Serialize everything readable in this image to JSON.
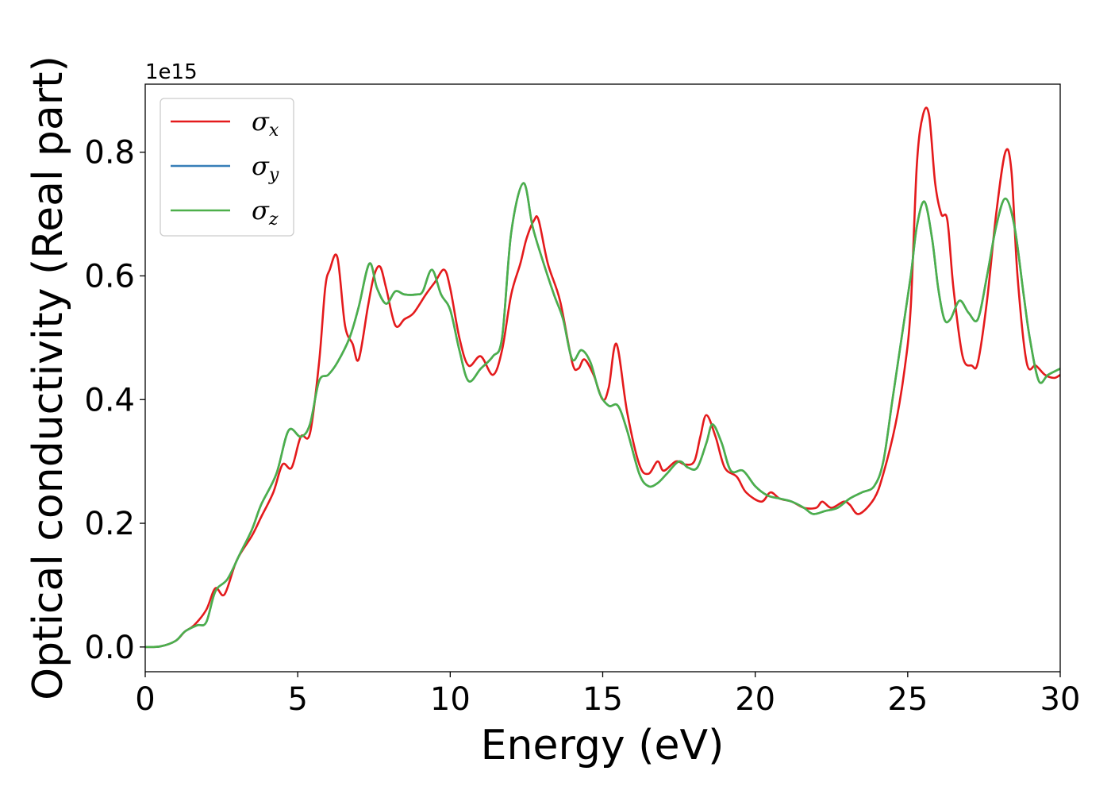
{
  "chart_data": {
    "type": "line",
    "xlabel": "Energy (eV)",
    "ylabel": "Optical conductivity (Real part)",
    "y_offset_text": "1e15",
    "xlim": [
      0,
      30
    ],
    "ylim": [
      -0.04,
      0.91
    ],
    "xticks": [
      0,
      5,
      10,
      15,
      20,
      25,
      30
    ],
    "yticks": [
      0.0,
      0.2,
      0.4,
      0.6,
      0.8
    ],
    "xtick_labels": [
      "0",
      "5",
      "10",
      "15",
      "20",
      "25",
      "30"
    ],
    "ytick_labels": [
      "0.0",
      "0.2",
      "0.4",
      "0.6",
      "0.8"
    ],
    "grid": false,
    "legend_position": "top-left",
    "series": [
      {
        "name": "σx",
        "legend_base": "σ",
        "legend_sub": "x",
        "color": "#e41a1c",
        "points": [
          [
            0,
            0
          ],
          [
            0.5,
            0.001
          ],
          [
            1.0,
            0.01
          ],
          [
            1.3,
            0.025
          ],
          [
            1.6,
            0.035
          ],
          [
            2.0,
            0.06
          ],
          [
            2.3,
            0.095
          ],
          [
            2.6,
            0.085
          ],
          [
            3.0,
            0.14
          ],
          [
            3.5,
            0.18
          ],
          [
            3.8,
            0.21
          ],
          [
            4.2,
            0.25
          ],
          [
            4.5,
            0.295
          ],
          [
            4.8,
            0.29
          ],
          [
            5.1,
            0.34
          ],
          [
            5.4,
            0.345
          ],
          [
            5.7,
            0.46
          ],
          [
            5.9,
            0.58
          ],
          [
            6.05,
            0.61
          ],
          [
            6.3,
            0.63
          ],
          [
            6.55,
            0.52
          ],
          [
            6.8,
            0.49
          ],
          [
            7.0,
            0.465
          ],
          [
            7.3,
            0.55
          ],
          [
            7.5,
            0.6
          ],
          [
            7.7,
            0.615
          ],
          [
            7.9,
            0.58
          ],
          [
            8.2,
            0.52
          ],
          [
            8.5,
            0.53
          ],
          [
            8.8,
            0.54
          ],
          [
            9.2,
            0.57
          ],
          [
            9.5,
            0.59
          ],
          [
            9.8,
            0.61
          ],
          [
            10.0,
            0.58
          ],
          [
            10.3,
            0.5
          ],
          [
            10.6,
            0.455
          ],
          [
            11.0,
            0.47
          ],
          [
            11.4,
            0.44
          ],
          [
            11.7,
            0.48
          ],
          [
            12.0,
            0.57
          ],
          [
            12.3,
            0.62
          ],
          [
            12.5,
            0.66
          ],
          [
            12.75,
            0.69
          ],
          [
            12.9,
            0.69
          ],
          [
            13.2,
            0.62
          ],
          [
            13.6,
            0.56
          ],
          [
            14.0,
            0.46
          ],
          [
            14.2,
            0.45
          ],
          [
            14.4,
            0.465
          ],
          [
            14.7,
            0.44
          ],
          [
            15.0,
            0.4
          ],
          [
            15.2,
            0.42
          ],
          [
            15.45,
            0.49
          ],
          [
            15.8,
            0.38
          ],
          [
            16.2,
            0.295
          ],
          [
            16.5,
            0.28
          ],
          [
            16.8,
            0.3
          ],
          [
            17.0,
            0.285
          ],
          [
            17.4,
            0.3
          ],
          [
            17.7,
            0.295
          ],
          [
            18.0,
            0.3
          ],
          [
            18.2,
            0.34
          ],
          [
            18.4,
            0.375
          ],
          [
            18.7,
            0.34
          ],
          [
            19.0,
            0.29
          ],
          [
            19.4,
            0.275
          ],
          [
            19.7,
            0.25
          ],
          [
            20.2,
            0.235
          ],
          [
            20.5,
            0.25
          ],
          [
            20.8,
            0.24
          ],
          [
            21.2,
            0.235
          ],
          [
            21.6,
            0.225
          ],
          [
            22.0,
            0.225
          ],
          [
            22.2,
            0.235
          ],
          [
            22.5,
            0.225
          ],
          [
            22.9,
            0.235
          ],
          [
            23.1,
            0.23
          ],
          [
            23.4,
            0.215
          ],
          [
            23.9,
            0.24
          ],
          [
            24.2,
            0.28
          ],
          [
            24.6,
            0.36
          ],
          [
            24.9,
            0.45
          ],
          [
            25.1,
            0.55
          ],
          [
            25.3,
            0.78
          ],
          [
            25.5,
            0.86
          ],
          [
            25.7,
            0.86
          ],
          [
            25.9,
            0.75
          ],
          [
            26.1,
            0.7
          ],
          [
            26.3,
            0.69
          ],
          [
            26.5,
            0.58
          ],
          [
            26.8,
            0.47
          ],
          [
            27.1,
            0.455
          ],
          [
            27.3,
            0.46
          ],
          [
            27.6,
            0.56
          ],
          [
            27.9,
            0.7
          ],
          [
            28.2,
            0.8
          ],
          [
            28.4,
            0.77
          ],
          [
            28.6,
            0.6
          ],
          [
            28.9,
            0.46
          ],
          [
            29.2,
            0.455
          ],
          [
            29.5,
            0.44
          ],
          [
            29.8,
            0.435
          ],
          [
            30.0,
            0.44
          ]
        ]
      },
      {
        "name": "σy",
        "legend_base": "σ",
        "legend_sub": "y",
        "color": "#377eb8",
        "points": [
          [
            0,
            0
          ],
          [
            0.5,
            0.001
          ],
          [
            1.0,
            0.01
          ],
          [
            1.3,
            0.025
          ],
          [
            1.7,
            0.035
          ],
          [
            2.0,
            0.04
          ],
          [
            2.3,
            0.09
          ],
          [
            2.7,
            0.11
          ],
          [
            3.1,
            0.15
          ],
          [
            3.5,
            0.19
          ],
          [
            3.8,
            0.23
          ],
          [
            4.3,
            0.28
          ],
          [
            4.7,
            0.35
          ],
          [
            5.1,
            0.34
          ],
          [
            5.4,
            0.36
          ],
          [
            5.7,
            0.43
          ],
          [
            6.0,
            0.44
          ],
          [
            6.3,
            0.46
          ],
          [
            6.7,
            0.5
          ],
          [
            7.0,
            0.55
          ],
          [
            7.35,
            0.62
          ],
          [
            7.6,
            0.58
          ],
          [
            7.9,
            0.555
          ],
          [
            8.2,
            0.575
          ],
          [
            8.5,
            0.57
          ],
          [
            8.9,
            0.57
          ],
          [
            9.1,
            0.575
          ],
          [
            9.4,
            0.61
          ],
          [
            9.7,
            0.57
          ],
          [
            10.0,
            0.545
          ],
          [
            10.3,
            0.48
          ],
          [
            10.6,
            0.43
          ],
          [
            11.0,
            0.45
          ],
          [
            11.4,
            0.47
          ],
          [
            11.7,
            0.5
          ],
          [
            12.0,
            0.67
          ],
          [
            12.4,
            0.75
          ],
          [
            12.7,
            0.68
          ],
          [
            13.0,
            0.63
          ],
          [
            13.4,
            0.57
          ],
          [
            13.7,
            0.53
          ],
          [
            14.0,
            0.465
          ],
          [
            14.3,
            0.48
          ],
          [
            14.6,
            0.46
          ],
          [
            14.9,
            0.41
          ],
          [
            15.2,
            0.39
          ],
          [
            15.5,
            0.39
          ],
          [
            15.8,
            0.35
          ],
          [
            16.2,
            0.28
          ],
          [
            16.5,
            0.26
          ],
          [
            16.8,
            0.265
          ],
          [
            17.1,
            0.28
          ],
          [
            17.5,
            0.3
          ],
          [
            17.8,
            0.29
          ],
          [
            18.1,
            0.29
          ],
          [
            18.4,
            0.33
          ],
          [
            18.6,
            0.36
          ],
          [
            18.9,
            0.33
          ],
          [
            19.2,
            0.285
          ],
          [
            19.6,
            0.285
          ],
          [
            20.0,
            0.26
          ],
          [
            20.4,
            0.245
          ],
          [
            20.8,
            0.24
          ],
          [
            21.2,
            0.235
          ],
          [
            21.6,
            0.225
          ],
          [
            21.9,
            0.215
          ],
          [
            22.3,
            0.22
          ],
          [
            22.7,
            0.225
          ],
          [
            23.1,
            0.24
          ],
          [
            23.5,
            0.25
          ],
          [
            23.9,
            0.26
          ],
          [
            24.2,
            0.3
          ],
          [
            24.5,
            0.4
          ],
          [
            24.8,
            0.5
          ],
          [
            25.1,
            0.6
          ],
          [
            25.3,
            0.68
          ],
          [
            25.55,
            0.72
          ],
          [
            25.8,
            0.66
          ],
          [
            26.0,
            0.58
          ],
          [
            26.2,
            0.53
          ],
          [
            26.4,
            0.53
          ],
          [
            26.7,
            0.56
          ],
          [
            27.0,
            0.54
          ],
          [
            27.3,
            0.53
          ],
          [
            27.6,
            0.6
          ],
          [
            27.9,
            0.68
          ],
          [
            28.2,
            0.725
          ],
          [
            28.5,
            0.68
          ],
          [
            28.8,
            0.57
          ],
          [
            29.0,
            0.5
          ],
          [
            29.3,
            0.43
          ],
          [
            29.6,
            0.44
          ],
          [
            30.0,
            0.45
          ]
        ]
      },
      {
        "name": "σz",
        "legend_base": "σ",
        "legend_sub": "z",
        "color": "#4daf4a",
        "points": [
          [
            0,
            0
          ],
          [
            0.5,
            0.001
          ],
          [
            1.0,
            0.01
          ],
          [
            1.3,
            0.025
          ],
          [
            1.7,
            0.035
          ],
          [
            2.0,
            0.04
          ],
          [
            2.3,
            0.09
          ],
          [
            2.7,
            0.11
          ],
          [
            3.1,
            0.15
          ],
          [
            3.5,
            0.19
          ],
          [
            3.8,
            0.23
          ],
          [
            4.3,
            0.28
          ],
          [
            4.7,
            0.35
          ],
          [
            5.1,
            0.34
          ],
          [
            5.4,
            0.36
          ],
          [
            5.7,
            0.43
          ],
          [
            6.0,
            0.44
          ],
          [
            6.3,
            0.46
          ],
          [
            6.7,
            0.5
          ],
          [
            7.0,
            0.55
          ],
          [
            7.35,
            0.62
          ],
          [
            7.6,
            0.58
          ],
          [
            7.9,
            0.555
          ],
          [
            8.2,
            0.575
          ],
          [
            8.5,
            0.57
          ],
          [
            8.9,
            0.57
          ],
          [
            9.1,
            0.575
          ],
          [
            9.4,
            0.61
          ],
          [
            9.7,
            0.57
          ],
          [
            10.0,
            0.545
          ],
          [
            10.3,
            0.48
          ],
          [
            10.6,
            0.43
          ],
          [
            11.0,
            0.45
          ],
          [
            11.4,
            0.47
          ],
          [
            11.7,
            0.5
          ],
          [
            12.0,
            0.67
          ],
          [
            12.4,
            0.75
          ],
          [
            12.7,
            0.68
          ],
          [
            13.0,
            0.63
          ],
          [
            13.4,
            0.57
          ],
          [
            13.7,
            0.53
          ],
          [
            14.0,
            0.465
          ],
          [
            14.3,
            0.48
          ],
          [
            14.6,
            0.46
          ],
          [
            14.9,
            0.41
          ],
          [
            15.2,
            0.39
          ],
          [
            15.5,
            0.39
          ],
          [
            15.8,
            0.35
          ],
          [
            16.2,
            0.28
          ],
          [
            16.5,
            0.26
          ],
          [
            16.8,
            0.265
          ],
          [
            17.1,
            0.28
          ],
          [
            17.5,
            0.3
          ],
          [
            17.8,
            0.29
          ],
          [
            18.1,
            0.29
          ],
          [
            18.4,
            0.33
          ],
          [
            18.6,
            0.36
          ],
          [
            18.9,
            0.33
          ],
          [
            19.2,
            0.285
          ],
          [
            19.6,
            0.285
          ],
          [
            20.0,
            0.26
          ],
          [
            20.4,
            0.245
          ],
          [
            20.8,
            0.24
          ],
          [
            21.2,
            0.235
          ],
          [
            21.6,
            0.225
          ],
          [
            21.9,
            0.215
          ],
          [
            22.3,
            0.22
          ],
          [
            22.7,
            0.225
          ],
          [
            23.1,
            0.24
          ],
          [
            23.5,
            0.25
          ],
          [
            23.9,
            0.26
          ],
          [
            24.2,
            0.3
          ],
          [
            24.5,
            0.4
          ],
          [
            24.8,
            0.5
          ],
          [
            25.1,
            0.6
          ],
          [
            25.3,
            0.68
          ],
          [
            25.55,
            0.72
          ],
          [
            25.8,
            0.66
          ],
          [
            26.0,
            0.58
          ],
          [
            26.2,
            0.53
          ],
          [
            26.4,
            0.53
          ],
          [
            26.7,
            0.56
          ],
          [
            27.0,
            0.54
          ],
          [
            27.3,
            0.53
          ],
          [
            27.6,
            0.6
          ],
          [
            27.9,
            0.68
          ],
          [
            28.2,
            0.725
          ],
          [
            28.5,
            0.68
          ],
          [
            28.8,
            0.57
          ],
          [
            29.0,
            0.5
          ],
          [
            29.3,
            0.43
          ],
          [
            29.6,
            0.44
          ],
          [
            30.0,
            0.45
          ]
        ]
      }
    ]
  }
}
